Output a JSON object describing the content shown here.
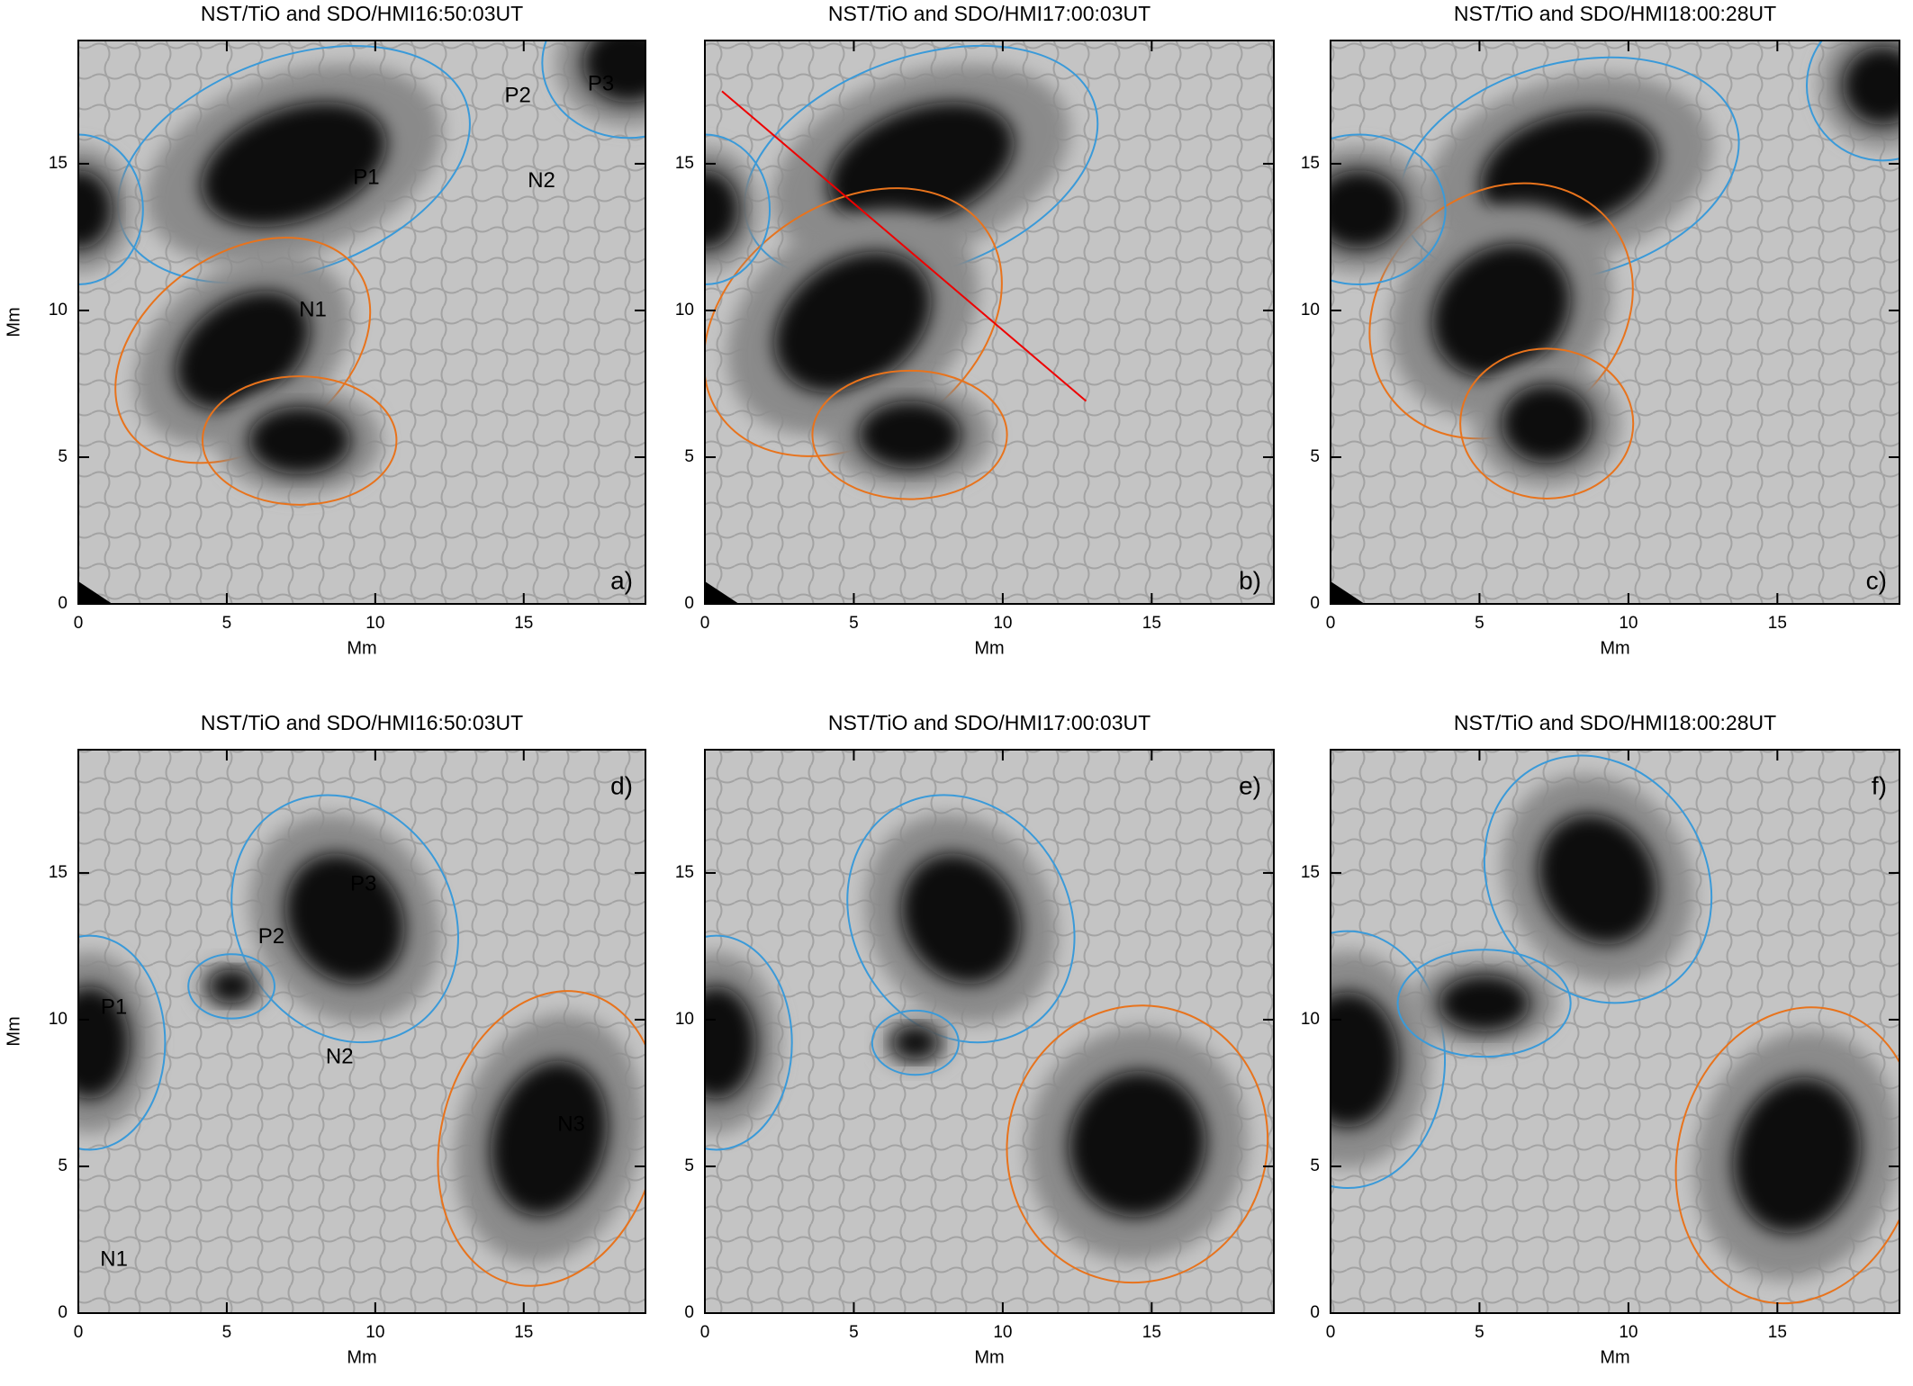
{
  "chart_data": [
    {
      "type": "image",
      "title": "NST/TiO and SDO/HMI16:50:03UT",
      "xlabel": "Mm",
      "ylabel": "Mm",
      "xlim": [
        0,
        19.1
      ],
      "ylim": [
        0,
        19.2
      ],
      "xticks": [
        0,
        5,
        10,
        15
      ],
      "yticks": [
        0,
        5,
        10,
        15
      ],
      "panel_label": "a)",
      "panel_label_corner": "lower right",
      "annotations": [
        {
          "text": "P1",
          "x": 9.7,
          "y": 14.5,
          "color": "#ffffff"
        },
        {
          "text": "N1",
          "x": 7.9,
          "y": 10.0,
          "color": "#ffffff"
        },
        {
          "text": "P2",
          "x": 14.8,
          "y": 17.3,
          "color": "#ffffff"
        },
        {
          "text": "P3",
          "x": 17.6,
          "y": 17.7,
          "color": "#ffffff"
        },
        {
          "text": "N2",
          "x": 15.6,
          "y": 14.4,
          "color": "#ffffff"
        }
      ]
    },
    {
      "type": "image",
      "title": "NST/TiO and SDO/HMI17:00:03UT",
      "xlabel": "Mm",
      "xlim": [
        0,
        19.1
      ],
      "ylim": [
        0,
        19.2
      ],
      "xticks": [
        0,
        5,
        10,
        15
      ],
      "yticks": [
        0,
        5,
        10,
        15
      ],
      "panel_label": "b)",
      "panel_label_corner": "lower right"
    },
    {
      "type": "image",
      "title": "NST/TiO and SDO/HMI18:00:28UT",
      "xlabel": "Mm",
      "xlim": [
        0,
        19.1
      ],
      "ylim": [
        0,
        19.2
      ],
      "xticks": [
        0,
        5,
        10,
        15
      ],
      "yticks": [
        0,
        5,
        10,
        15
      ],
      "panel_label": "c)",
      "panel_label_corner": "lower right"
    },
    {
      "type": "image",
      "title": "NST/TiO and SDO/HMI16:50:03UT",
      "xlabel": "Mm",
      "ylabel": "Mm",
      "xlim": [
        0,
        19.1
      ],
      "ylim": [
        0,
        19.2
      ],
      "xticks": [
        0,
        5,
        10,
        15
      ],
      "yticks": [
        0,
        5,
        10,
        15
      ],
      "panel_label": "d)",
      "panel_label_corner": "upper right",
      "annotations": [
        {
          "text": "P3",
          "x": 9.6,
          "y": 14.6,
          "color": "#000000"
        },
        {
          "text": "P2",
          "x": 6.5,
          "y": 12.8,
          "color": "#000000"
        },
        {
          "text": "P1",
          "x": 1.2,
          "y": 10.4,
          "color": "#ffffff"
        },
        {
          "text": "N2",
          "x": 8.8,
          "y": 8.7,
          "color": "#000000"
        },
        {
          "text": "N3",
          "x": 16.6,
          "y": 6.4,
          "color": "#ffffff"
        },
        {
          "text": "N1",
          "x": 1.2,
          "y": 1.8,
          "color": "#000000"
        }
      ]
    },
    {
      "type": "image",
      "title": "NST/TiO and SDO/HMI17:00:03UT",
      "xlabel": "Mm",
      "xlim": [
        0,
        19.1
      ],
      "ylim": [
        0,
        19.2
      ],
      "xticks": [
        0,
        5,
        10,
        15
      ],
      "yticks": [
        0,
        5,
        10,
        15
      ],
      "panel_label": "e)",
      "panel_label_corner": "upper right"
    },
    {
      "type": "image",
      "title": "NST/TiO and SDO/HMI18:00:28UT",
      "xlabel": "Mm",
      "xlim": [
        0,
        19.1
      ],
      "ylim": [
        0,
        19.2
      ],
      "xticks": [
        0,
        5,
        10,
        15
      ],
      "yticks": [
        0,
        5,
        10,
        15
      ],
      "panel_label": "f)",
      "panel_label_corner": "upper right"
    }
  ]
}
